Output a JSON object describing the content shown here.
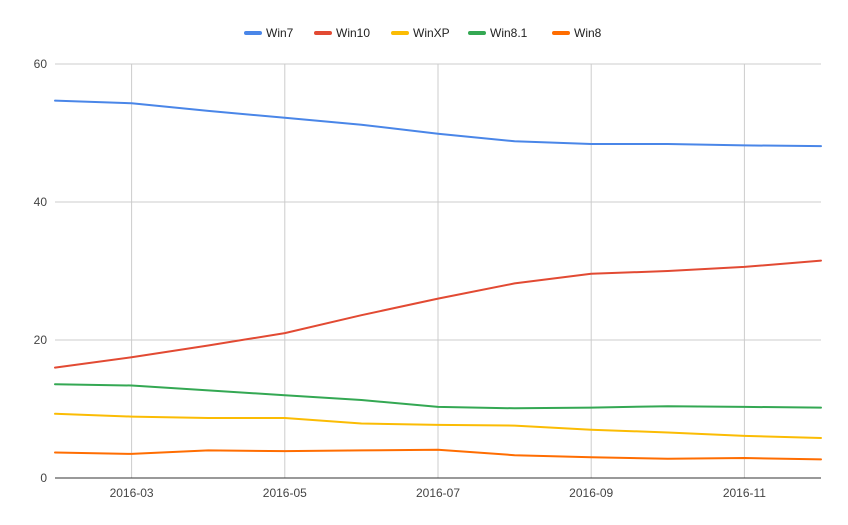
{
  "chart_data": {
    "type": "line",
    "title": "",
    "xlabel": "",
    "ylabel": "",
    "x": [
      "2016-02",
      "2016-03",
      "2016-04",
      "2016-05",
      "2016-06",
      "2016-07",
      "2016-08",
      "2016-09",
      "2016-10",
      "2016-11",
      "2016-12"
    ],
    "x_tick_labels": [
      "2016-03",
      "2016-05",
      "2016-07",
      "2016-09",
      "2016-11"
    ],
    "ylim": [
      0,
      60
    ],
    "y_ticks": [
      0,
      20,
      40,
      60
    ],
    "grid": true,
    "legend_position": "top",
    "series": [
      {
        "name": "Win7",
        "color": "#4a86e8",
        "values": [
          54.7,
          54.3,
          53.2,
          52.2,
          51.2,
          49.9,
          48.8,
          48.4,
          48.4,
          48.2,
          48.1
        ]
      },
      {
        "name": "Win10",
        "color": "#e24a33",
        "values": [
          16.0,
          17.5,
          19.2,
          21.0,
          23.6,
          26.0,
          28.2,
          29.6,
          30.0,
          30.6,
          31.5
        ]
      },
      {
        "name": "WinXP",
        "color": "#fbbc04",
        "values": [
          9.3,
          8.9,
          8.7,
          8.7,
          7.9,
          7.7,
          7.6,
          7.0,
          6.6,
          6.1,
          5.8
        ]
      },
      {
        "name": "Win8.1",
        "color": "#34a853",
        "values": [
          13.6,
          13.4,
          12.7,
          12.0,
          11.3,
          10.3,
          10.1,
          10.2,
          10.4,
          10.3,
          10.2
        ]
      },
      {
        "name": "Win8",
        "color": "#ff6d01",
        "values": [
          3.7,
          3.5,
          4.0,
          3.9,
          4.0,
          4.1,
          3.3,
          3.0,
          2.8,
          2.9,
          2.7
        ]
      }
    ]
  }
}
